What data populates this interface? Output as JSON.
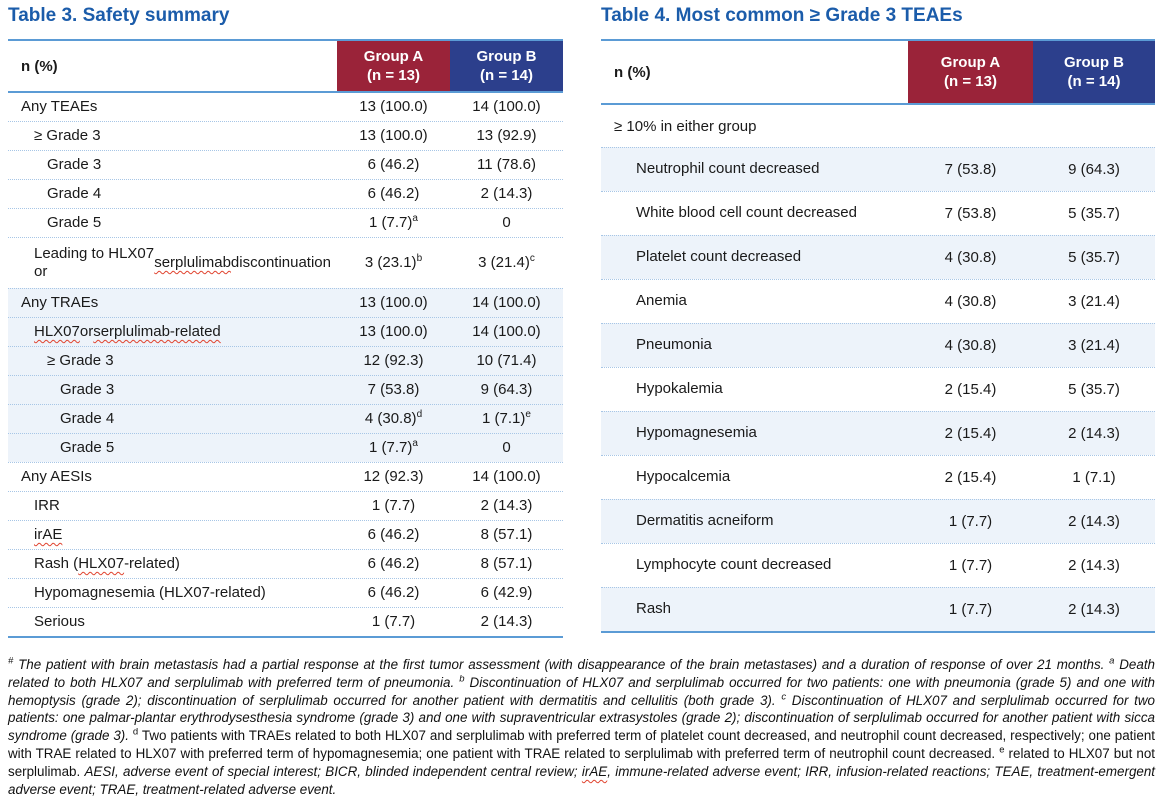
{
  "colors": {
    "title_blue": "#1b5caa",
    "group_a_red": "#9a2339",
    "group_b_blue": "#2c3f8c",
    "rule_blue": "#5b9bd5",
    "dotted_blue": "#a7c6e6",
    "row_shade": "#edf3fa",
    "spellcheck_red": "#e0422e"
  },
  "table3": {
    "title": "Table 3. Safety summary",
    "header": {
      "label": "n (%)",
      "group_a": "Group A\n(n = 13)",
      "group_b": "Group B\n(n = 14)"
    },
    "rows": [
      {
        "label": "Any TEAEs",
        "indent": 0,
        "a": "13 (100.0)",
        "b": "14 (100.0)"
      },
      {
        "label": "≥ Grade 3",
        "indent": 1,
        "a": "13 (100.0)",
        "b": "13 (92.9)"
      },
      {
        "label": "Grade 3",
        "indent": 2,
        "a": "6 (46.2)",
        "b": "11 (78.6)"
      },
      {
        "label": "Grade 4",
        "indent": 2,
        "a": "6 (46.2)",
        "b": "2 (14.3)"
      },
      {
        "label": "Grade 5",
        "indent": 2,
        "a": "1 (7.7)",
        "a_sup": "a",
        "b": "0"
      },
      {
        "label": "Leading to HLX07 or serplulimab discontinuation",
        "indent": 1,
        "a": "3 (23.1)",
        "a_sup": "b",
        "b": "3 (21.4)",
        "b_sup": "c",
        "tall": true,
        "wavy": [
          "serplulimab"
        ]
      },
      {
        "label": "Any TRAEs",
        "indent": 0,
        "a": "13 (100.0)",
        "b": "14 (100.0)",
        "shaded": true
      },
      {
        "label": "HLX07 or serplulimab-related",
        "indent": 1,
        "a": "13 (100.0)",
        "b": "14 (100.0)",
        "shaded": true,
        "wavy": [
          "HLX07",
          "serplulimab-related"
        ]
      },
      {
        "label": "≥ Grade 3",
        "indent": 2,
        "a": "12 (92.3)",
        "b": "10 (71.4)",
        "shaded": true
      },
      {
        "label": "Grade 3",
        "indent": 3,
        "a": "7 (53.8)",
        "b": "9 (64.3)",
        "shaded": true
      },
      {
        "label": "Grade 4",
        "indent": 3,
        "a": "4 (30.8)",
        "a_sup": "d",
        "b": "1 (7.1)",
        "b_sup": "e",
        "shaded": true
      },
      {
        "label": "Grade 5",
        "indent": 3,
        "a": "1 (7.7)",
        "a_sup": "a",
        "b": "0",
        "shaded": true
      },
      {
        "label": "Any AESIs",
        "indent": 0,
        "a": "12 (92.3)",
        "b": "14 (100.0)"
      },
      {
        "label": "IRR",
        "indent": 1,
        "a": "1 (7.7)",
        "b": "2 (14.3)"
      },
      {
        "label": "irAE",
        "indent": 1,
        "a": "6 (46.2)",
        "b": "8 (57.1)",
        "wavy": [
          "irAE"
        ]
      },
      {
        "label": "Rash (HLX07-related)",
        "indent": 1,
        "a": "6 (46.2)",
        "b": "8 (57.1)",
        "wavy": [
          "HLX07"
        ]
      },
      {
        "label": "Hypomagnesemia (HLX07-related)",
        "indent": 1,
        "a": "6 (46.2)",
        "b": "6 (42.9)"
      },
      {
        "label": "Serious",
        "indent": 1,
        "a": "1 (7.7)",
        "b": "2 (14.3)"
      }
    ]
  },
  "table4": {
    "title": "Table 4. Most common ≥ Grade 3 TEAEs",
    "header": {
      "label": "n (%)",
      "group_a": "Group A\n(n = 13)",
      "group_b": "Group B\n(n = 14)"
    },
    "subhead": "≥ 10% in either group",
    "rows": [
      {
        "label": "Neutrophil count decreased",
        "a": "7 (53.8)",
        "b": "9 (64.3)"
      },
      {
        "label": "White blood cell count decreased",
        "a": "7 (53.8)",
        "b": "5 (35.7)"
      },
      {
        "label": "Platelet count decreased",
        "a": "4 (30.8)",
        "b": "5 (35.7)"
      },
      {
        "label": "Anemia",
        "a": "4 (30.8)",
        "b": "3 (21.4)"
      },
      {
        "label": "Pneumonia",
        "a": "4 (30.8)",
        "b": "3 (21.4)"
      },
      {
        "label": "Hypokalemia",
        "a": "2 (15.4)",
        "b": "5 (35.7)"
      },
      {
        "label": "Hypomagnesemia",
        "a": "2 (15.4)",
        "b": "2 (14.3)"
      },
      {
        "label": "Hypocalcemia",
        "a": "2 (15.4)",
        "b": "1 (7.1)"
      },
      {
        "label": "Dermatitis acneiform",
        "a": "1 (7.7)",
        "b": "2 (14.3)"
      },
      {
        "label": "Lymphocyte count decreased",
        "a": "1 (7.7)",
        "b": "2 (14.3)"
      },
      {
        "label": "Rash",
        "a": "1 (7.7)",
        "b": "2 (14.3)"
      }
    ]
  },
  "footnote": {
    "segments": [
      {
        "t": "#",
        "sup": true
      },
      {
        "t": " The patient with brain metastasis had a partial response at the first tumor assessment (with disappearance of the brain metastases) and a duration of response of over 21 months. "
      },
      {
        "t": "a",
        "sup": true
      },
      {
        "t": " Death related to both HLX07 and serplulimab with preferred term of pneumonia. "
      },
      {
        "t": "b",
        "sup": true
      },
      {
        "t": " Discontinuation of HLX07 and serplulimab occurred for two patients: one with pneumonia (grade 5) and one with hemoptysis (grade 2); discontinuation of serplulimab occurred for another patient with dermatitis and cellulitis (both grade 3). "
      },
      {
        "t": "c",
        "sup": true
      },
      {
        "t": " Discontinuation of HLX07 and serplulimab occurred for two patients: one palmar-plantar erythrodysesthesia syndrome (grade 3) and one with supraventricular extrasystoles (grade 2); discontinuation of serplulimab occurred for another patient with sicca syndrome (grade 3). "
      },
      {
        "t": "d",
        "sup": true,
        "upright": true
      },
      {
        "t": " Two patients with TRAEs related to both HLX07 and serplulimab with preferred term of platelet count decreased, and neutrophil count decreased, respectively; one patient with TRAE related to HLX07 with preferred term of hypomagnesemia; one patient with TRAE related to serplulimab with preferred term of neutrophil count decreased. ",
        "upright": true
      },
      {
        "t": "e",
        "sup": true,
        "upright": true
      },
      {
        "t": " related to HLX07 but not serplulimab. ",
        "upright": true
      },
      {
        "t": "AESI, adverse event of special interest; BICR, blinded independent central review; "
      },
      {
        "t": "irAE",
        "wavy": true
      },
      {
        "t": ", immune-related adverse event; IRR, infusion-related reactions; TEAE, treatment-emergent adverse event; TRAE, treatment-related adverse event."
      }
    ]
  }
}
